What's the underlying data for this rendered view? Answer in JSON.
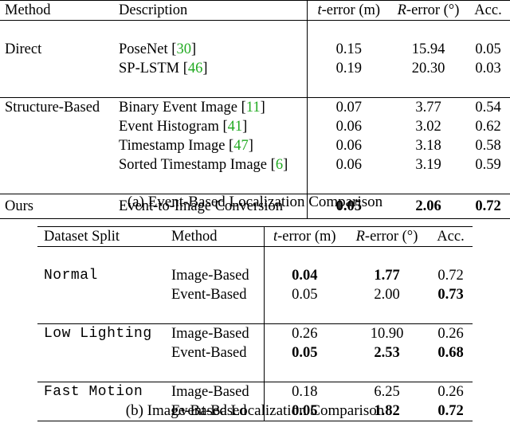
{
  "table_a": {
    "headers": {
      "method": "Method",
      "description": "Description",
      "t_error": "-error (m)",
      "t_sym": "t",
      "r_error": "-error (°)",
      "r_sym": "R",
      "acc": "Acc."
    },
    "rows": [
      {
        "group": "Direct",
        "desc": "PoseNet [",
        "cite": "30",
        "close": "]",
        "t": "0.15",
        "r": "15.94",
        "acc": "0.05"
      },
      {
        "group": "",
        "desc": "SP-LSTM [",
        "cite": "46",
        "close": "]",
        "t": "0.19",
        "r": "20.30",
        "acc": "0.03"
      },
      {
        "group": "Structure-Based",
        "desc": "Binary Event Image [",
        "cite": "11",
        "close": "]",
        "t": "0.07",
        "r": "3.77",
        "acc": "0.54"
      },
      {
        "group": "",
        "desc": "Event Histogram [",
        "cite": "41",
        "close": "]",
        "t": "0.06",
        "r": "3.02",
        "acc": "0.62"
      },
      {
        "group": "",
        "desc": "Timestamp Image [",
        "cite": "47",
        "close": "]",
        "t": "0.06",
        "r": "3.18",
        "acc": "0.58"
      },
      {
        "group": "",
        "desc": "Sorted Timestamp Image [",
        "cite": "6",
        "close": "]",
        "t": "0.06",
        "r": "3.19",
        "acc": "0.59"
      },
      {
        "group": "Ours",
        "desc": "Event-to-Image Conversion",
        "cite": "",
        "close": "",
        "t": "0.05",
        "r": "2.06",
        "acc": "0.72"
      }
    ],
    "caption": "(a) Event-Based Localization Comparison"
  },
  "table_b": {
    "headers": {
      "split": "Dataset Split",
      "method": "Method",
      "t_error": "-error (m)",
      "t_sym": "t",
      "r_error": "-error (°)",
      "r_sym": "R",
      "acc": "Acc."
    },
    "rows": [
      {
        "split": "Normal",
        "method": "Image-Based",
        "t": "0.04",
        "r": "1.77",
        "acc": "0.72"
      },
      {
        "split": "",
        "method": "Event-Based",
        "t": "0.05",
        "r": "2.00",
        "acc": "0.73"
      },
      {
        "split": "Low Lighting",
        "method": "Image-Based",
        "t": "0.26",
        "r": "10.90",
        "acc": "0.26"
      },
      {
        "split": "",
        "method": "Event-Based",
        "t": "0.05",
        "r": "2.53",
        "acc": "0.68"
      },
      {
        "split": "Fast Motion",
        "method": "Image-Based",
        "t": "0.18",
        "r": "6.25",
        "acc": "0.26"
      },
      {
        "split": "",
        "method": "Event-Based",
        "t": "0.05",
        "r": "1.82",
        "acc": "0.72"
      }
    ],
    "caption": "(b) Image-Based Localization Comparison"
  }
}
